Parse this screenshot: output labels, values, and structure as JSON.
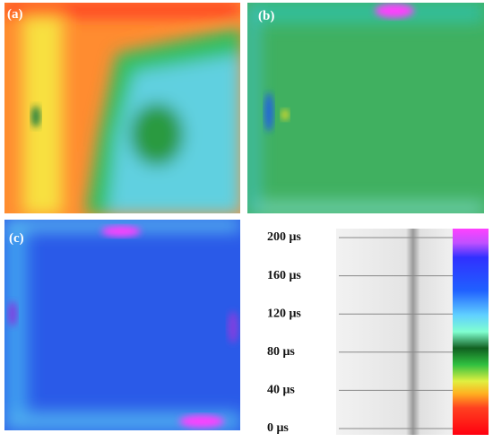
{
  "panels": [
    {
      "label": "(a)"
    },
    {
      "label": "(b)"
    },
    {
      "label": "(c)"
    }
  ],
  "colorbar": {
    "lim": [
      0,
      200
    ],
    "ticks": [
      {
        "value": 0,
        "label": "0  μs"
      },
      {
        "value": 40,
        "label": "40  μs"
      },
      {
        "value": 80,
        "label": "80  μs"
      },
      {
        "value": 120,
        "label": "120  μs"
      },
      {
        "value": 160,
        "label": "160  μs"
      },
      {
        "value": 200,
        "label": "200  μs"
      }
    ]
  }
}
